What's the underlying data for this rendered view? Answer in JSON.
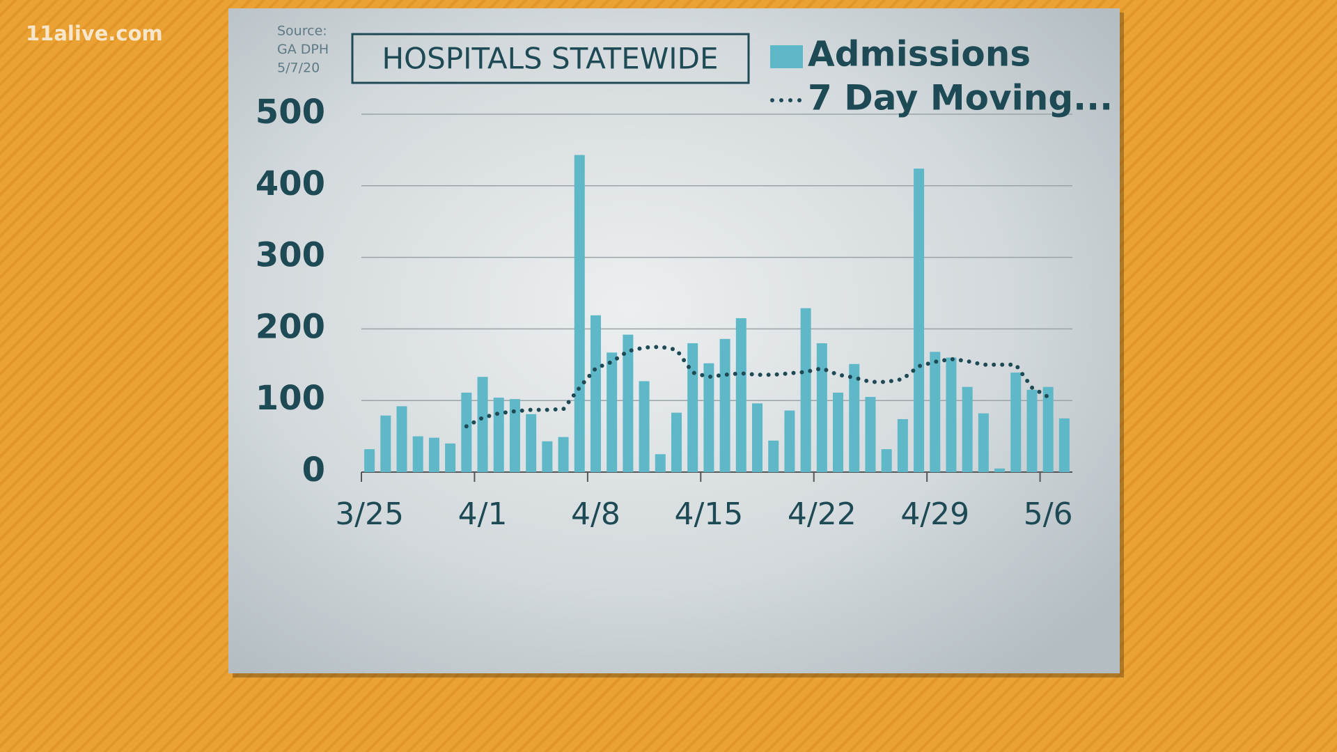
{
  "watermark": "11alive.com",
  "chart_data": {
    "type": "bar",
    "title": "HOSPITALS STATEWIDE",
    "source": [
      "Source:",
      "GA DPH",
      "5/7/20"
    ],
    "categories": [
      "3/25",
      null,
      null,
      null,
      null,
      null,
      null,
      "4/1",
      null,
      null,
      null,
      null,
      null,
      null,
      "4/8",
      null,
      null,
      null,
      null,
      null,
      null,
      "4/15",
      null,
      null,
      null,
      null,
      null,
      null,
      "4/22",
      null,
      null,
      null,
      null,
      null,
      null,
      "4/29",
      null,
      null,
      null,
      null,
      null,
      null,
      "5/6",
      null
    ],
    "series": [
      {
        "name": "Admissions",
        "type": "bar",
        "color": "#5fb8c8",
        "values": [
          32,
          79,
          92,
          50,
          48,
          40,
          111,
          133,
          104,
          102,
          81,
          43,
          49,
          443,
          219,
          167,
          192,
          127,
          25,
          83,
          180,
          152,
          186,
          215,
          96,
          44,
          86,
          229,
          180,
          111,
          151,
          105,
          32,
          74,
          424,
          168,
          160,
          119,
          82,
          5,
          139,
          115,
          119,
          75
        ]
      },
      {
        "name": "7 Day Moving...",
        "type": "line",
        "style": "dotted",
        "color": "#1e4a55",
        "values": [
          null,
          null,
          null,
          null,
          null,
          null,
          64,
          76,
          82,
          85,
          87,
          87,
          88,
          118,
          145,
          154,
          169,
          174,
          175,
          171,
          139,
          133,
          136,
          138,
          136,
          136,
          138,
          140,
          145,
          136,
          132,
          126,
          126,
          130,
          148,
          154,
          158,
          155,
          150,
          150,
          150,
          118,
          105,
          null
        ]
      }
    ],
    "ylim": [
      0,
      500
    ],
    "yticks": [
      0,
      100,
      200,
      300,
      400,
      500
    ],
    "grid": true,
    "legend": "top-right"
  }
}
